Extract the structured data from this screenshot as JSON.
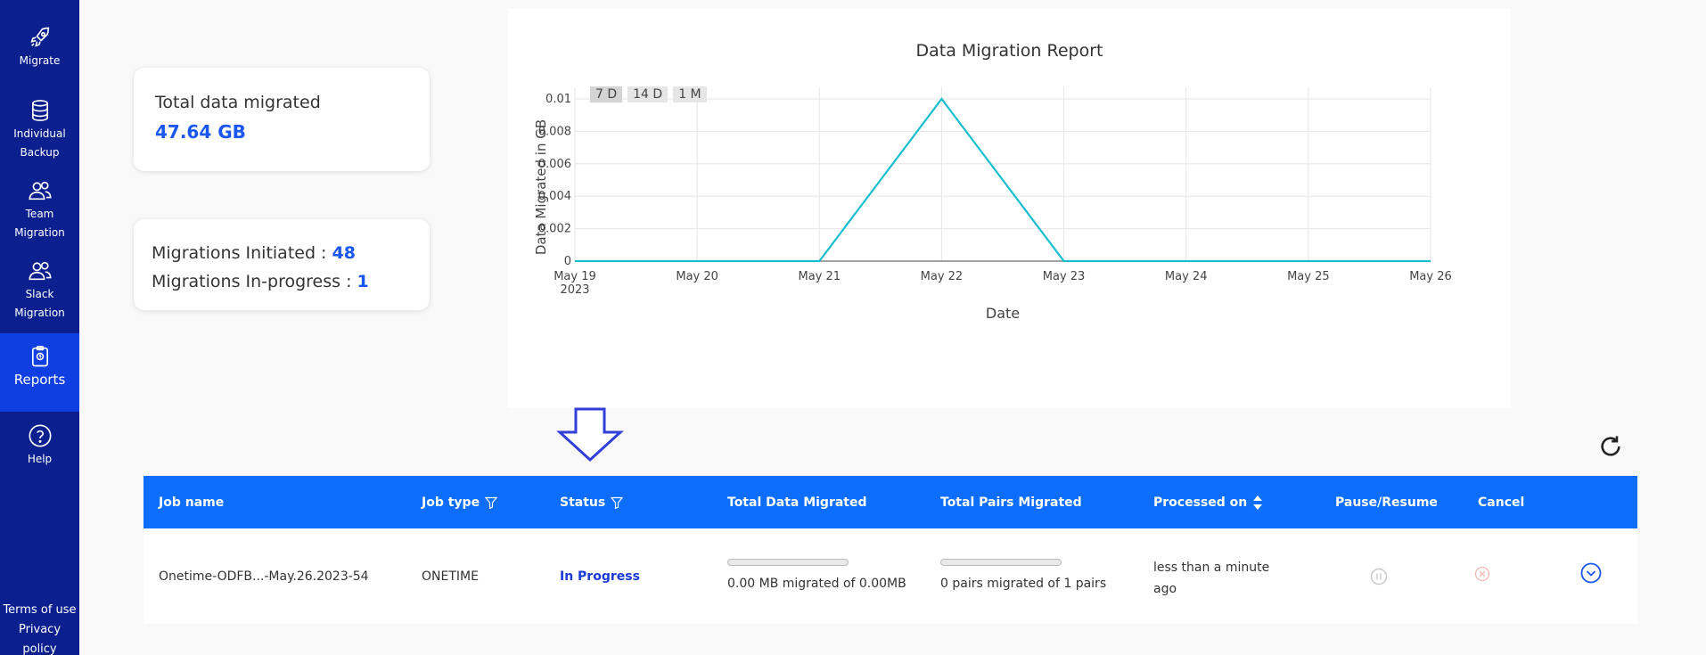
{
  "sidebar": {
    "items": [
      {
        "label": "Migrate",
        "icon": "rocket-icon"
      },
      {
        "label": "Individual Backup",
        "icon": "database-icon"
      },
      {
        "label": "Team Migration",
        "icon": "users-icon"
      },
      {
        "label": "Slack Migration",
        "icon": "users-icon"
      },
      {
        "label": "Reports",
        "icon": "clipboard-icon"
      },
      {
        "label": "Help",
        "icon": "help-circle-icon"
      }
    ],
    "active": "Reports",
    "footer": {
      "terms": "Terms of use",
      "privacy": "Privacy policy"
    }
  },
  "summary": {
    "total_label": "Total data migrated",
    "total_value": "47.64 GB",
    "initiated_label": "Migrations Initiated :",
    "initiated_value": "48",
    "inprogress_label": "Migrations In-progress :",
    "inprogress_value": "1"
  },
  "chart_data": {
    "type": "line",
    "title": "Data Migration Report",
    "xlabel": "Date",
    "ylabel": "Data Migrated in GB",
    "categories": [
      "May 19",
      "May 20",
      "May 21",
      "May 22",
      "May 23",
      "May 24",
      "May 25",
      "May 26"
    ],
    "first_category_sub": "2023",
    "values": [
      0,
      0,
      0,
      0.01,
      0,
      0,
      0,
      0
    ],
    "y_ticks": [
      "0",
      "0.002",
      "0.004",
      "0.006",
      "0.008",
      "0.01"
    ],
    "ylim": [
      0,
      0.01
    ],
    "grid": true,
    "range_buttons": [
      "7 D",
      "14 D",
      "1 M"
    ],
    "selected_range": "7 D",
    "line_color": "#17becf"
  },
  "table": {
    "headers": [
      "Job name",
      "Job type",
      "Status",
      "Total Data Migrated",
      "Total Pairs Migrated",
      "Processed on",
      "Pause/Resume",
      "Cancel"
    ],
    "rows": [
      {
        "job_name": "Onetime-ODFB...-May.26.2023-54",
        "job_type": "ONETIME",
        "status": "In Progress",
        "data_migrated": "0.00 MB migrated of 0.00MB",
        "data_progress": 0,
        "pairs_migrated": "0 pairs migrated of 1 pairs",
        "pairs_progress": 0,
        "processed_on_line1": "less than a minute",
        "processed_on_line2": "ago"
      }
    ]
  },
  "colors": {
    "sidebar": "#0b1f8f",
    "active": "#0f3fe0",
    "header": "#0d6efd",
    "accent": "#1a56f0"
  }
}
